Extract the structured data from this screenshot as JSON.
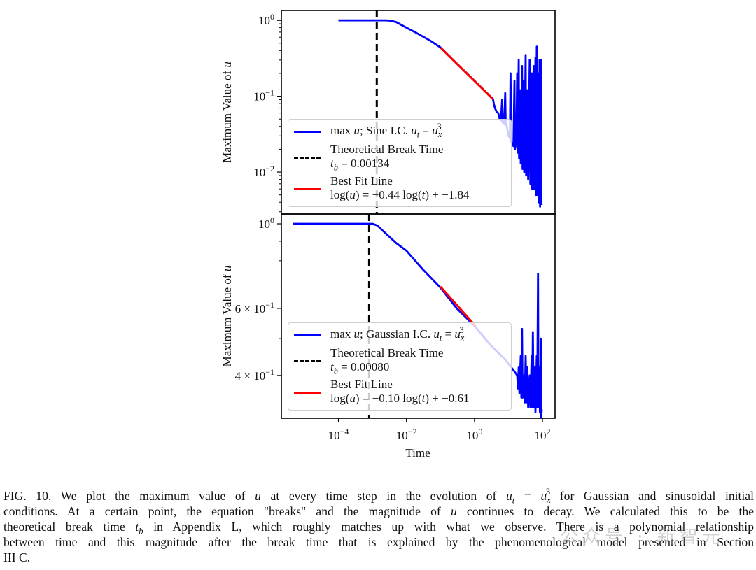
{
  "chart_data": [
    {
      "type": "line",
      "panel": "top",
      "xscale": "log",
      "yscale": "log",
      "xlim": [
        2.1e-06,
        234
      ],
      "ylim": [
        0.0028,
        1.35
      ],
      "ylabel": "Maximum Value of u",
      "yticks": [
        {
          "value": 1,
          "base": "10",
          "exp": "0"
        },
        {
          "value": 0.1,
          "base": "10",
          "exp": "−1"
        },
        {
          "value": 0.01,
          "base": "10",
          "exp": "−2"
        }
      ],
      "series": [
        {
          "name": "max u; Sine I.C. u_t = u_x^3",
          "color": "#0000ff",
          "points": [
            [
              0.0001,
              1
            ],
            [
              0.0025,
              1
            ],
            [
              0.0035,
              0.99
            ],
            [
              0.005,
              0.95
            ],
            [
              0.01,
              0.8
            ],
            [
              0.02,
              0.68
            ],
            [
              0.05,
              0.54
            ],
            [
              0.1,
              0.44
            ],
            [
              0.3,
              0.27
            ],
            [
              1,
              0.16
            ],
            [
              3.5,
              0.092
            ],
            [
              3.7,
              0.08
            ],
            [
              4,
              0.07
            ],
            [
              4.5,
              0.062
            ],
            [
              5,
              0.06
            ],
            [
              5.5,
              0.05
            ],
            [
              6,
              0.048
            ],
            [
              6.5,
              0.09
            ],
            [
              6.8,
              0.045
            ],
            [
              7.5,
              0.043
            ],
            [
              8,
              0.11
            ],
            [
              8.3,
              0.042
            ],
            [
              9,
              0.04
            ],
            [
              10,
              0.03
            ],
            [
              11,
              0.028
            ],
            [
              11.5,
              0.2
            ],
            [
              12,
              0.025
            ],
            [
              14,
              0.022
            ],
            [
              15,
              0.16
            ],
            [
              15.5,
              0.02
            ],
            [
              17,
              0.025
            ],
            [
              18,
              0.2
            ],
            [
              18.5,
              0.018
            ],
            [
              20,
              0.3
            ],
            [
              20.5,
              0.015
            ],
            [
              22,
              0.12
            ],
            [
              23,
              0.013
            ],
            [
              25,
              0.25
            ],
            [
              26,
              0.011
            ],
            [
              28,
              0.16
            ],
            [
              29,
              0.01
            ],
            [
              32,
              0.35
            ],
            [
              33,
              0.009
            ],
            [
              36,
              0.12
            ],
            [
              38,
              0.008
            ],
            [
              42,
              0.3
            ],
            [
              44,
              0.007
            ],
            [
              48,
              0.2
            ],
            [
              50,
              0.006
            ],
            [
              55,
              0.25
            ],
            [
              57,
              0.006
            ],
            [
              62,
              0.32
            ],
            [
              64,
              0.005
            ],
            [
              68,
              0.45
            ],
            [
              70,
              0.005
            ],
            [
              75,
              0.2
            ],
            [
              78,
              0.004
            ],
            [
              82,
              0.3
            ],
            [
              85,
              0.0035
            ],
            [
              90,
              0.3
            ],
            [
              92,
              0.004
            ],
            [
              95,
              0.0037
            ]
          ]
        }
      ],
      "break_time": {
        "label": "Theoretical Break Time",
        "value_label": "t_b = 0.00134",
        "t": 0.00134,
        "color": "#000000"
      },
      "fit": {
        "label": "Best Fit Line",
        "equation": "log(u) = −0.44 log(t) + −1.84",
        "slope": -0.44,
        "intercept": -1.84,
        "t_range": [
          0.1,
          3.5
        ],
        "color": "#ff0000"
      },
      "legend_placement": "lower-left"
    },
    {
      "type": "line",
      "panel": "bottom",
      "xscale": "log",
      "yscale": "log",
      "xlim": [
        2.1e-06,
        234
      ],
      "ylim": [
        0.309,
        1.061
      ],
      "xlabel": "Time",
      "ylabel": "Maximum Value of u",
      "xticks": [
        {
          "value": 0.0001,
          "base": "10",
          "exp": "−4"
        },
        {
          "value": 0.01,
          "base": "10",
          "exp": "−2"
        },
        {
          "value": 1,
          "base": "10",
          "exp": "0"
        },
        {
          "value": 100,
          "base": "10",
          "exp": "2"
        }
      ],
      "yticks": [
        {
          "value": 1,
          "base": "10",
          "exp": "0"
        },
        {
          "value": 0.6,
          "base": "6 × 10",
          "exp": "−1"
        },
        {
          "value": 0.4,
          "base": "4 × 10",
          "exp": "−1"
        }
      ],
      "series": [
        {
          "name": "max u; Gaussian I.C. u_t = u_x^3",
          "color": "#0000ff",
          "points": [
            [
              4.5e-06,
              1
            ],
            [
              0.001,
              1
            ],
            [
              0.0014,
              0.99
            ],
            [
              0.002,
              0.96
            ],
            [
              0.005,
              0.89
            ],
            [
              0.01,
              0.85
            ],
            [
              0.03,
              0.76
            ],
            [
              0.1,
              0.68
            ],
            [
              0.3,
              0.6
            ],
            [
              1,
              0.54
            ],
            [
              3,
              0.48
            ],
            [
              8,
              0.44
            ],
            [
              15,
              0.41
            ],
            [
              18,
              0.4
            ],
            [
              19,
              0.37
            ],
            [
              20,
              0.42
            ],
            [
              21,
              0.36
            ],
            [
              23,
              0.45
            ],
            [
              24,
              0.35
            ],
            [
              25,
              0.53
            ],
            [
              26,
              0.35
            ],
            [
              28,
              0.4
            ],
            [
              30,
              0.34
            ],
            [
              32,
              0.45
            ],
            [
              34,
              0.34
            ],
            [
              36,
              0.42
            ],
            [
              38,
              0.33
            ],
            [
              42,
              0.4
            ],
            [
              44,
              0.33
            ],
            [
              48,
              0.45
            ],
            [
              50,
              0.33
            ],
            [
              52,
              0.52
            ],
            [
              55,
              0.33
            ],
            [
              60,
              0.42
            ],
            [
              62,
              0.32
            ],
            [
              68,
              0.45
            ],
            [
              70,
              0.33
            ],
            [
              74,
              0.74
            ],
            [
              76,
              0.33
            ],
            [
              80,
              0.42
            ],
            [
              84,
              0.32
            ],
            [
              90,
              0.5
            ],
            [
              92,
              0.31
            ],
            [
              95,
              0.326
            ]
          ]
        }
      ],
      "break_time": {
        "label": "Theoretical Break Time",
        "value_label": "t_b = 0.00080",
        "t": 0.0008,
        "color": "#000000"
      },
      "fit": {
        "label": "Best Fit Line",
        "equation": "log(u) = −0.10 log(t) + −0.61",
        "slope": -0.1,
        "intercept": -0.61,
        "t_range": [
          0.1,
          1.1
        ],
        "color": "#ff0000"
      },
      "legend_placement": "lower-left"
    }
  ],
  "legends": [
    {
      "series": [
        [
          "max ",
          ""
        ],
        [
          "u",
          "i"
        ],
        [
          "; Sine I.C. ",
          ""
        ],
        [
          "u",
          "i"
        ],
        [
          "t",
          "sub"
        ],
        [
          " = ",
          ""
        ],
        [
          "u",
          "i"
        ],
        [
          "x",
          "subsup"
        ],
        [
          "3",
          "sup"
        ]
      ],
      "break_label": "Theoretical Break Time",
      "break_value": [
        [
          "t",
          "i"
        ],
        [
          "b",
          "sub"
        ],
        [
          " = 0.00134",
          ""
        ]
      ],
      "fit_label": "Best Fit Line",
      "fit_equation": [
        [
          "log(",
          ""
        ],
        [
          "u",
          "i"
        ],
        [
          ") = −0.44 log(",
          ""
        ],
        [
          "t",
          "i"
        ],
        [
          ") + −1.84",
          ""
        ]
      ]
    },
    {
      "series": [
        [
          "max ",
          ""
        ],
        [
          "u",
          "i"
        ],
        [
          "; Gaussian I.C. ",
          ""
        ],
        [
          "u",
          "i"
        ],
        [
          "t",
          "sub"
        ],
        [
          " = ",
          ""
        ],
        [
          "u",
          "i"
        ],
        [
          "x",
          "subsup"
        ],
        [
          "3",
          "sup"
        ]
      ],
      "break_label": "Theoretical Break Time",
      "break_value": [
        [
          "t",
          "i"
        ],
        [
          "b",
          "sub"
        ],
        [
          " = 0.00080",
          ""
        ]
      ],
      "fit_label": "Best Fit Line",
      "fit_equation": [
        [
          "log(",
          ""
        ],
        [
          "u",
          "i"
        ],
        [
          ") = −0.10 log(",
          ""
        ],
        [
          "t",
          "i"
        ],
        [
          ") + −0.61",
          ""
        ]
      ]
    }
  ],
  "caption": {
    "lines": [
      [
        [
          "FIG. 10.  We plot the maximum value of ",
          ""
        ],
        [
          "u",
          "i"
        ],
        [
          " at every time step in the evolution of ",
          ""
        ],
        [
          "u",
          "i"
        ],
        [
          "t",
          "sub"
        ],
        [
          " = ",
          ""
        ],
        [
          "u",
          "i"
        ],
        [
          "x",
          "subsup"
        ],
        [
          "3",
          "sup"
        ],
        [
          " for Gaussian and sinusoidal initial",
          ""
        ]
      ],
      [
        [
          "conditions. At a certain point, the equation \"breaks\" and the magnitude of ",
          ""
        ],
        [
          "u",
          "i"
        ],
        [
          " continues to decay. We calculated this to be the",
          ""
        ]
      ],
      [
        [
          "theoretical break time ",
          ""
        ],
        [
          "t",
          "i"
        ],
        [
          "b",
          "sub"
        ],
        [
          " in Appendix L, which roughly matches up with what we observe. There is a polynomial relationship",
          ""
        ]
      ],
      [
        [
          "between time and this magnitude after the break time that is explained by the phenomenological model presented in Section",
          ""
        ]
      ],
      [
        [
          "III C.",
          ""
        ]
      ]
    ]
  },
  "watermark": "公众号 · 新智元"
}
